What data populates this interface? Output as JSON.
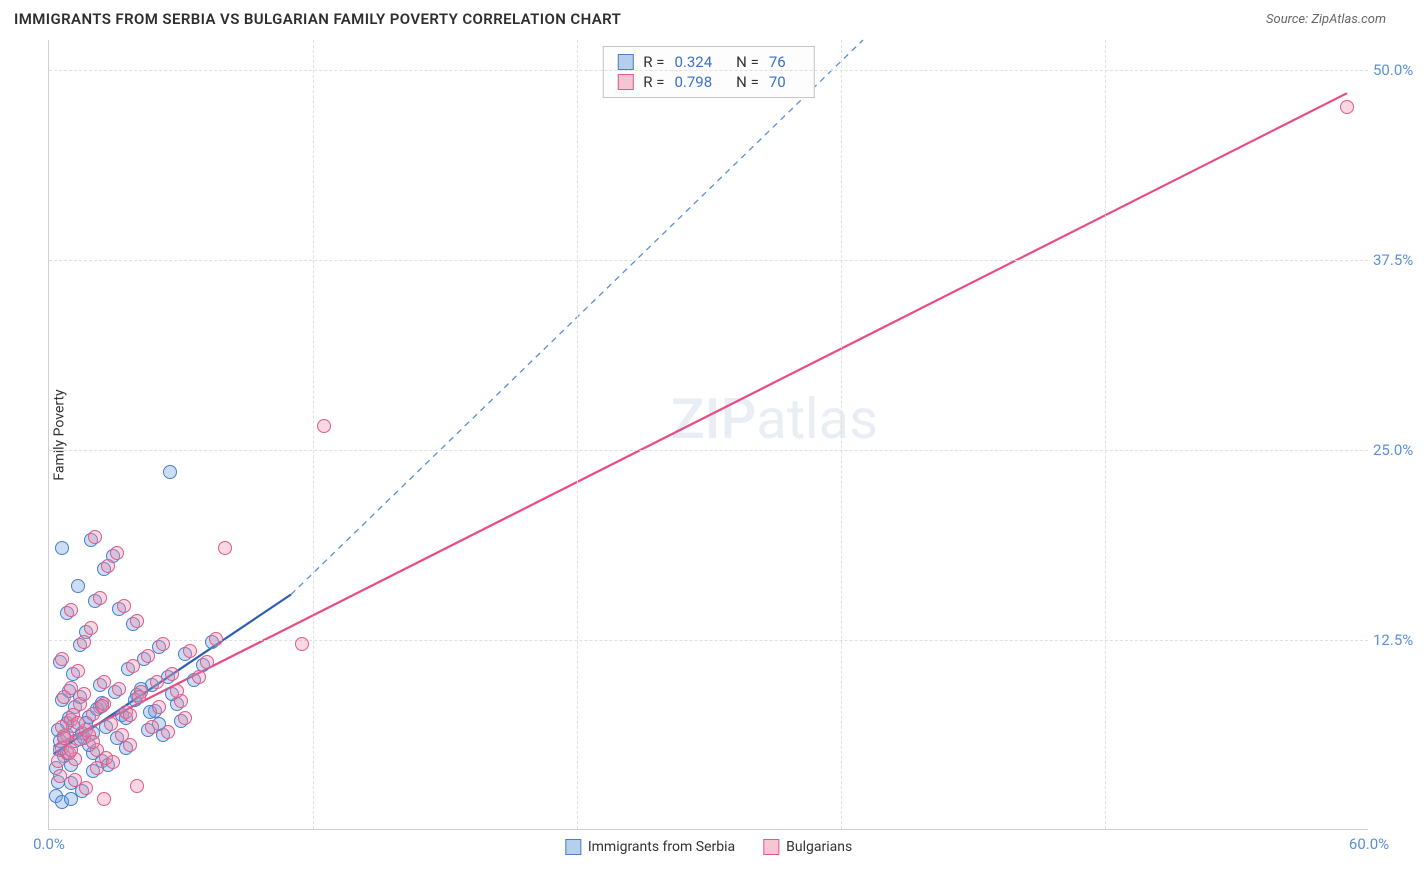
{
  "header": {
    "title": "IMMIGRANTS FROM SERBIA VS BULGARIAN FAMILY POVERTY CORRELATION CHART",
    "source_prefix": "Source: ",
    "source_name": "ZipAtlas.com"
  },
  "chart": {
    "type": "scatter",
    "y_axis_title": "Family Poverty",
    "xlim": [
      0,
      60
    ],
    "ylim": [
      0,
      52
    ],
    "background_color": "#ffffff",
    "grid_color": "#e0e0e0",
    "grid_dash": "3,3",
    "axis_line_color": "#d0d0d0",
    "xticks": [
      {
        "value": 0,
        "label": "0.0%"
      },
      {
        "value": 60,
        "label": "60.0%"
      }
    ],
    "xgrid": [
      12,
      24,
      36,
      48
    ],
    "yticks": [
      {
        "value": 12.5,
        "label": "12.5%"
      },
      {
        "value": 25.0,
        "label": "25.0%"
      },
      {
        "value": 37.5,
        "label": "37.5%"
      },
      {
        "value": 50.0,
        "label": "50.0%"
      }
    ],
    "tick_label_color": "#5b8fd6",
    "tick_fontsize": 15,
    "marker_radius": 7,
    "marker_opacity": 0.55,
    "marker_stroke_width": 1.2,
    "series": [
      {
        "name": "Immigrants from Serbia",
        "color_fill": "rgba(110,160,220,0.35)",
        "color_stroke": "#4a7fc9",
        "trend_solid": {
          "x1": 0.2,
          "y1": 5.0,
          "x2": 11.0,
          "y2": 15.5,
          "color": "#2c5fb3",
          "width": 2.2
        },
        "trend_dash": {
          "x1": 11.0,
          "y1": 15.5,
          "x2": 37.0,
          "y2": 52.0,
          "color": "#5b8fd6",
          "width": 1.3,
          "dash": "6,5"
        },
        "points": [
          [
            0.3,
            4.0
          ],
          [
            0.5,
            5.2
          ],
          [
            0.7,
            6.1
          ],
          [
            0.4,
            3.1
          ],
          [
            0.8,
            7.0
          ],
          [
            1.0,
            4.2
          ],
          [
            1.2,
            5.8
          ],
          [
            0.6,
            8.5
          ],
          [
            1.5,
            6.3
          ],
          [
            0.9,
            9.1
          ],
          [
            1.8,
            7.4
          ],
          [
            2.0,
            5.0
          ],
          [
            1.1,
            10.2
          ],
          [
            2.3,
            8.0
          ],
          [
            0.5,
            11.0
          ],
          [
            2.6,
            6.7
          ],
          [
            1.4,
            12.1
          ],
          [
            3.0,
            9.0
          ],
          [
            1.7,
            13.0
          ],
          [
            3.3,
            7.5
          ],
          [
            0.8,
            14.2
          ],
          [
            3.6,
            10.5
          ],
          [
            2.1,
            15.0
          ],
          [
            4.0,
            8.8
          ],
          [
            1.3,
            16.0
          ],
          [
            4.3,
            11.2
          ],
          [
            2.5,
            17.1
          ],
          [
            0.6,
            18.5
          ],
          [
            4.7,
            9.5
          ],
          [
            2.9,
            18.0
          ],
          [
            5.0,
            12.0
          ],
          [
            1.9,
            19.0
          ],
          [
            5.4,
            10.0
          ],
          [
            3.2,
            14.5
          ],
          [
            5.8,
            8.2
          ],
          [
            2.2,
            7.9
          ],
          [
            6.2,
            11.5
          ],
          [
            1.6,
            6.0
          ],
          [
            6.6,
            9.8
          ],
          [
            3.8,
            13.5
          ],
          [
            7.0,
            10.8
          ],
          [
            2.4,
            4.5
          ],
          [
            7.4,
            12.3
          ],
          [
            4.5,
            6.5
          ],
          [
            3.5,
            5.3
          ],
          [
            4.8,
            7.8
          ],
          [
            5.2,
            6.2
          ],
          [
            5.6,
            8.9
          ],
          [
            6.0,
            7.1
          ],
          [
            1.0,
            3.0
          ],
          [
            1.5,
            2.5
          ],
          [
            2.0,
            3.8
          ],
          [
            0.4,
            6.5
          ],
          [
            0.7,
            4.8
          ],
          [
            1.2,
            8.0
          ],
          [
            1.8,
            5.5
          ],
          [
            0.9,
            7.3
          ],
          [
            2.3,
            9.5
          ],
          [
            1.1,
            6.8
          ],
          [
            2.7,
            4.2
          ],
          [
            0.5,
            5.8
          ],
          [
            3.1,
            6.0
          ],
          [
            1.4,
            8.7
          ],
          [
            3.5,
            7.3
          ],
          [
            0.8,
            5.0
          ],
          [
            3.9,
            8.5
          ],
          [
            1.7,
            7.0
          ],
          [
            4.2,
            9.2
          ],
          [
            2.0,
            6.3
          ],
          [
            4.6,
            7.7
          ],
          [
            2.4,
            8.3
          ],
          [
            5.0,
            6.9
          ],
          [
            5.5,
            23.5
          ],
          [
            0.3,
            2.2
          ],
          [
            0.6,
            1.8
          ],
          [
            1.0,
            2.0
          ]
        ]
      },
      {
        "name": "Bulgarians",
        "color_fill": "rgba(240,140,170,0.35)",
        "color_stroke": "#e05b8a",
        "trend_solid": {
          "x1": 0.2,
          "y1": 5.5,
          "x2": 59.0,
          "y2": 48.5,
          "color": "#e94b87",
          "width": 2.2
        },
        "points": [
          [
            0.4,
            4.5
          ],
          [
            0.6,
            5.3
          ],
          [
            0.8,
            6.2
          ],
          [
            0.5,
            3.5
          ],
          [
            1.0,
            7.2
          ],
          [
            1.2,
            4.6
          ],
          [
            1.4,
            5.9
          ],
          [
            0.7,
            8.7
          ],
          [
            1.7,
            6.5
          ],
          [
            1.0,
            9.3
          ],
          [
            2.0,
            7.6
          ],
          [
            2.2,
            5.2
          ],
          [
            1.3,
            10.4
          ],
          [
            2.5,
            8.2
          ],
          [
            0.6,
            11.2
          ],
          [
            2.8,
            6.9
          ],
          [
            1.6,
            12.3
          ],
          [
            3.2,
            9.2
          ],
          [
            1.9,
            13.2
          ],
          [
            3.5,
            7.7
          ],
          [
            1.0,
            14.4
          ],
          [
            3.8,
            10.7
          ],
          [
            2.3,
            15.2
          ],
          [
            4.2,
            9.0
          ],
          [
            4.5,
            11.4
          ],
          [
            2.7,
            17.3
          ],
          [
            4.9,
            9.7
          ],
          [
            3.1,
            18.2
          ],
          [
            5.2,
            12.2
          ],
          [
            2.1,
            19.2
          ],
          [
            5.6,
            10.2
          ],
          [
            3.4,
            14.7
          ],
          [
            6.0,
            8.4
          ],
          [
            2.4,
            8.1
          ],
          [
            6.4,
            11.7
          ],
          [
            1.8,
            6.2
          ],
          [
            6.8,
            10.0
          ],
          [
            4.0,
            13.7
          ],
          [
            7.2,
            11.0
          ],
          [
            2.6,
            4.7
          ],
          [
            7.6,
            12.5
          ],
          [
            4.7,
            6.7
          ],
          [
            3.7,
            5.5
          ],
          [
            5.0,
            8.0
          ],
          [
            5.4,
            6.4
          ],
          [
            5.8,
            9.1
          ],
          [
            6.2,
            7.3
          ],
          [
            1.2,
            3.2
          ],
          [
            1.7,
            2.7
          ],
          [
            2.2,
            4.0
          ],
          [
            0.6,
            6.7
          ],
          [
            0.9,
            5.0
          ],
          [
            1.4,
            8.2
          ],
          [
            2.0,
            5.7
          ],
          [
            1.1,
            7.5
          ],
          [
            2.5,
            9.7
          ],
          [
            1.3,
            7.0
          ],
          [
            2.9,
            4.4
          ],
          [
            0.7,
            6.0
          ],
          [
            3.3,
            6.2
          ],
          [
            1.6,
            8.9
          ],
          [
            3.7,
            7.5
          ],
          [
            1.0,
            5.2
          ],
          [
            4.1,
            8.7
          ],
          [
            8.0,
            18.5
          ],
          [
            11.5,
            12.2
          ],
          [
            12.5,
            26.5
          ],
          [
            59.0,
            47.5
          ],
          [
            2.5,
            2.0
          ],
          [
            4.0,
            2.8
          ]
        ]
      }
    ]
  },
  "legend_top": {
    "rows": [
      {
        "sq_fill": "rgba(110,160,220,0.5)",
        "sq_stroke": "#4a7fc9",
        "r_label": "R =",
        "r_value": "0.324",
        "n_label": "N =",
        "n_value": "76"
      },
      {
        "sq_fill": "rgba(240,140,170,0.5)",
        "sq_stroke": "#e05b8a",
        "r_label": "R =",
        "r_value": "0.798",
        "n_label": "N =",
        "n_value": "70"
      }
    ]
  },
  "legend_bottom": {
    "items": [
      {
        "sq_fill": "rgba(110,160,220,0.5)",
        "sq_stroke": "#4a7fc9",
        "label": "Immigrants from Serbia"
      },
      {
        "sq_fill": "rgba(240,140,170,0.5)",
        "sq_stroke": "#e05b8a",
        "label": "Bulgarians"
      }
    ]
  },
  "watermark": {
    "zip": "ZIP",
    "atlas": "atlas"
  }
}
